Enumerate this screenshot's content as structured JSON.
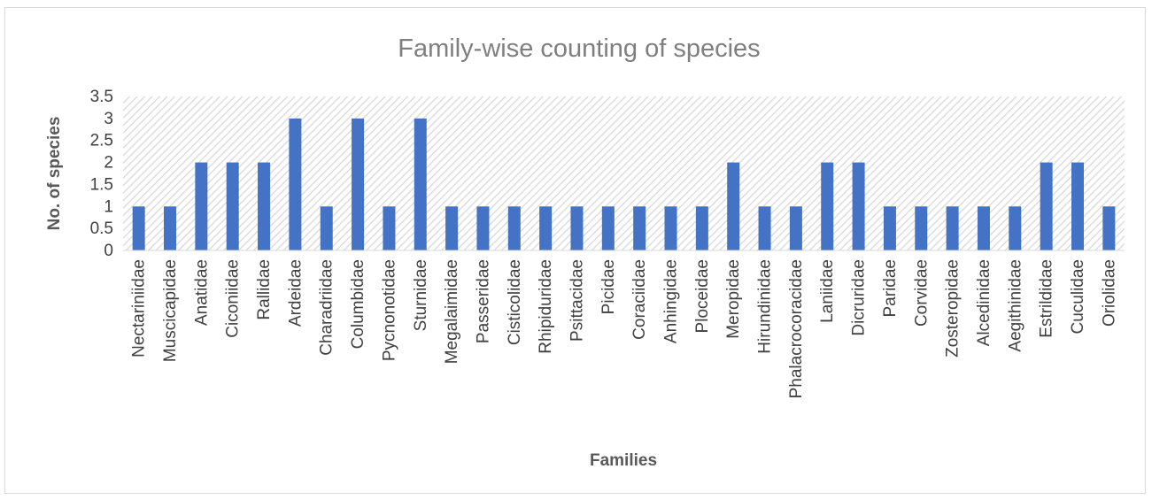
{
  "chart_data": {
    "type": "bar",
    "title": "Family-wise counting of species",
    "xlabel": "Families",
    "ylabel": "No. of species",
    "ylim": [
      0,
      3.5
    ],
    "yticks": [
      "0",
      "0.5",
      "1",
      "1.5",
      "2",
      "2.5",
      "3",
      "3.5"
    ],
    "categories": [
      "Nectariniidae",
      "Muscicapidae",
      "Anatidae",
      "Ciconiidae",
      "Rallidae",
      "Ardeidae",
      "Charadriidae",
      "Columbidae",
      "Pycnonotidae",
      "Sturnidae",
      "Megalaimidae",
      "Passeridae",
      "Cisticolidae",
      "Rhipiduridae",
      "Psittacidae",
      "Picidae",
      "Coraciidae",
      "Anhingidae",
      "Ploceidae",
      "Meropidae",
      "Hirundinidae",
      "Phalacrocoracidae",
      "Laniidae",
      "Dicruridae",
      "Paridae",
      "Corvidae",
      "Zosteropidae",
      "Alcedinidae",
      "Aegithinidae",
      "Estrildidae",
      "Cuculidae",
      "Oriolidae"
    ],
    "values": [
      1,
      1,
      2,
      2,
      2,
      3,
      1,
      3,
      1,
      3,
      1,
      1,
      1,
      1,
      1,
      1,
      1,
      1,
      1,
      2,
      1,
      1,
      2,
      2,
      1,
      1,
      1,
      1,
      1,
      2,
      2,
      1
    ],
    "bar_color": "#4472c4",
    "plot_background": "hatched light gray",
    "grid": false,
    "legend": "none"
  }
}
